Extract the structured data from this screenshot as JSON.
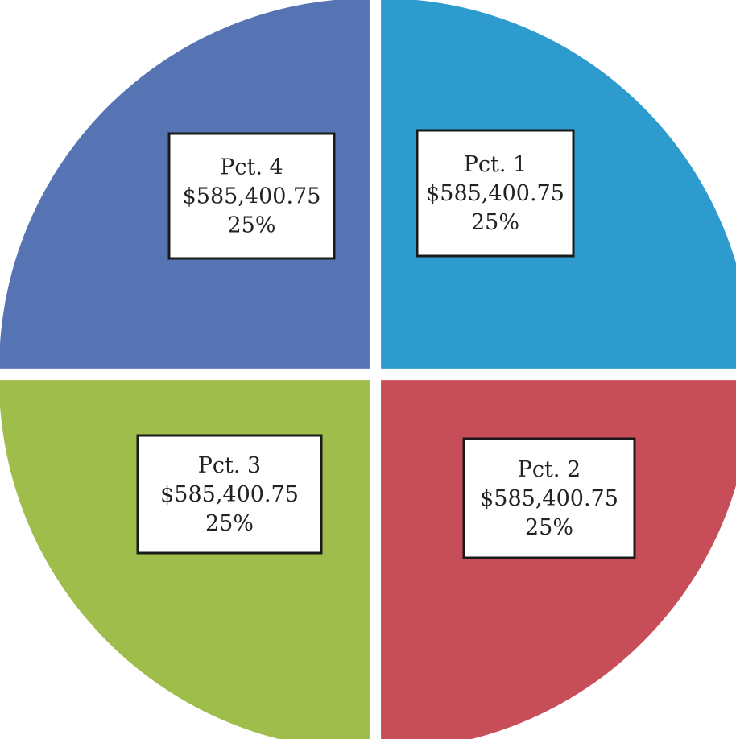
{
  "chart_data": {
    "type": "pie",
    "title": "",
    "start": "top",
    "direction": "clockwise",
    "slices": [
      {
        "label": "Pct. 1",
        "amount": "$585,400.75",
        "value": 585400.75,
        "percent": "25%",
        "color": "#2e9bcf"
      },
      {
        "label": "Pct. 2",
        "amount": "$585,400.75",
        "value": 585400.75,
        "percent": "25%",
        "color": "#c74e58"
      },
      {
        "label": "Pct. 3",
        "amount": "$585,400.75",
        "value": 585400.75,
        "percent": "25%",
        "color": "#9ebd4a"
      },
      {
        "label": "Pct. 4",
        "amount": "$585,400.75",
        "value": 585400.75,
        "percent": "25%",
        "color": "#5674b4"
      }
    ]
  }
}
